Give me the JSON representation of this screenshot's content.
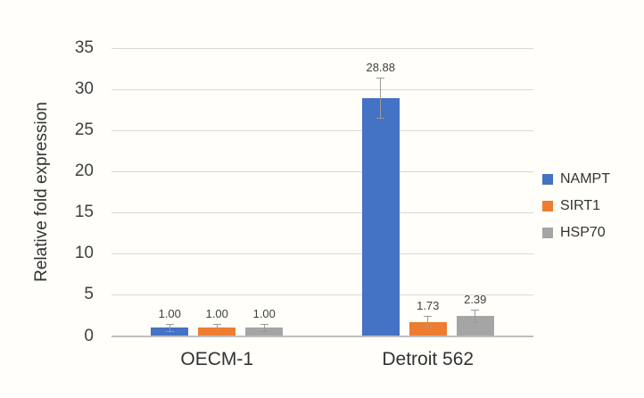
{
  "chart_data": {
    "type": "bar",
    "title": "",
    "xlabel": "",
    "ylabel": "Relative fold expression",
    "categories": [
      "OECM-1",
      "Detroit 562"
    ],
    "series": [
      {
        "name": "NAMPT",
        "color": "#4472C4",
        "values": [
          1.0,
          28.88
        ],
        "errors": [
          0.5,
          2.5
        ],
        "labels": [
          "1.00",
          "28.88"
        ]
      },
      {
        "name": "SIRT1",
        "color": "#ED7D31",
        "values": [
          1.0,
          1.73
        ],
        "errors": [
          0.5,
          0.75
        ],
        "labels": [
          "1.00",
          "1.73"
        ]
      },
      {
        "name": "HSP70",
        "color": "#A5A5A5",
        "values": [
          1.0,
          2.39
        ],
        "errors": [
          0.5,
          0.8
        ],
        "labels": [
          "1.00",
          "2.39"
        ]
      }
    ],
    "ylim": [
      0,
      35
    ],
    "ytick_step": 5,
    "ytick_labels": [
      "0",
      "5",
      "10",
      "15",
      "20",
      "25",
      "30",
      "35"
    ],
    "grid": true,
    "legend_position": "right",
    "colors": {
      "background": "#FFFEF9",
      "gridline": "#D9D9D9",
      "axis_line": "#BFBFBF",
      "error_bar": "#9A9A9A",
      "text": "#333333",
      "tick_text": "#3F3F3F",
      "data_label_text": "#3F3F3F"
    }
  }
}
